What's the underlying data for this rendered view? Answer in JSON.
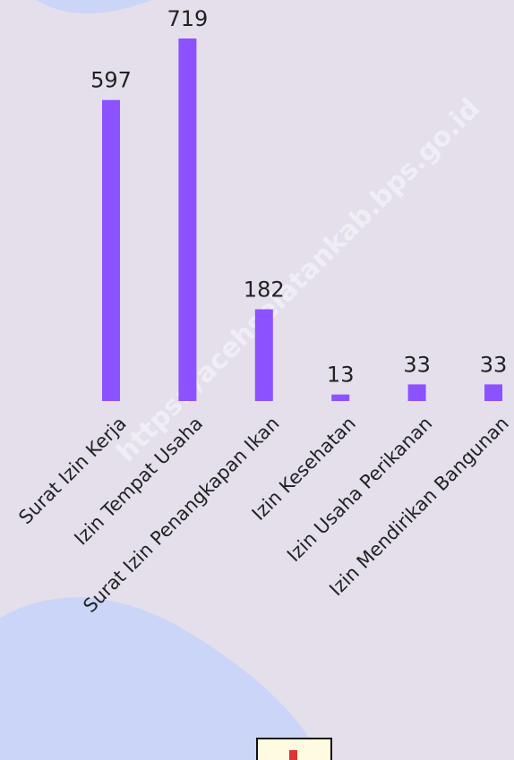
{
  "chart_data": {
    "type": "bar",
    "categories": [
      "Surat Izin Kerja",
      "Izin Tempat Usaha",
      "Surat Izin Penangkapan Ikan",
      "Izin Kesehatan",
      "Izin Usaha Perikanan",
      "Izin Mendirikan Bangunan"
    ],
    "values": [
      597,
      719,
      182,
      13,
      33,
      33
    ],
    "color": "#8c52ff",
    "watermark": "https://acehselatankab.bps.go.id"
  }
}
